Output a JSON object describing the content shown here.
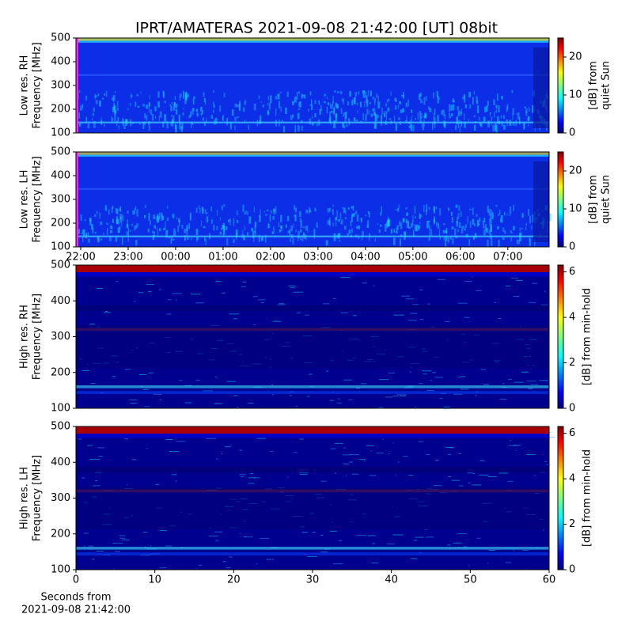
{
  "title": "IPRT/AMATERAS 2021-09-08 21:42:00 [UT]   08bit",
  "chart_data": [
    {
      "type": "heatmap",
      "ylabel": [
        "Low res. RH",
        "Frequency [MHz]"
      ],
      "ylim": [
        100,
        500
      ],
      "yticks": [
        100,
        200,
        300,
        400,
        500
      ],
      "clim": [
        0,
        25
      ],
      "cticks": [
        0,
        10,
        20
      ],
      "clabel": [
        "[dB] from",
        "quiet Sun"
      ],
      "colormap": "jet"
    },
    {
      "type": "heatmap",
      "ylabel": [
        "Low res. LH",
        "Frequency [MHz]"
      ],
      "ylim": [
        100,
        500
      ],
      "yticks": [
        100,
        200,
        300,
        400,
        500
      ],
      "xlim": [
        21.9,
        31.87
      ],
      "xticks": [
        {
          "value": 22,
          "label": "22:00"
        },
        {
          "value": 23,
          "label": "23:00"
        },
        {
          "value": 24,
          "label": "00:00"
        },
        {
          "value": 25,
          "label": "01:00"
        },
        {
          "value": 26,
          "label": "02:00"
        },
        {
          "value": 27,
          "label": "03:00"
        },
        {
          "value": 28,
          "label": "04:00"
        },
        {
          "value": 29,
          "label": "05:00"
        },
        {
          "value": 30,
          "label": "06:00"
        },
        {
          "value": 31,
          "label": "07:00"
        }
      ],
      "clim": [
        0,
        25
      ],
      "cticks": [
        0,
        10,
        20
      ],
      "clabel": [
        "[dB] from",
        "quiet Sun"
      ],
      "colormap": "jet"
    },
    {
      "type": "heatmap",
      "ylabel": [
        "High res. RH",
        "Frequency [MHz]"
      ],
      "ylim": [
        100,
        500
      ],
      "yticks": [
        100,
        200,
        300,
        400,
        500
      ],
      "clim": [
        0,
        6.3
      ],
      "cticks": [
        0,
        2,
        4,
        6
      ],
      "clabel": [
        "[dB] from min-hold"
      ],
      "colormap": "jet"
    },
    {
      "type": "heatmap",
      "ylabel": [
        "High res. LH",
        "Frequency [MHz]"
      ],
      "ylim": [
        100,
        500
      ],
      "yticks": [
        100,
        200,
        300,
        400,
        500
      ],
      "xlim": [
        0,
        60
      ],
      "xticks": [
        0,
        10,
        20,
        30,
        40,
        50,
        60
      ],
      "xlabel": [
        "Seconds from",
        "2021-09-08 21:42:00"
      ],
      "clim": [
        0,
        6.3
      ],
      "cticks": [
        0,
        2,
        4,
        6
      ],
      "clabel": [
        "[dB] from min-hold"
      ],
      "colormap": "jet"
    }
  ]
}
